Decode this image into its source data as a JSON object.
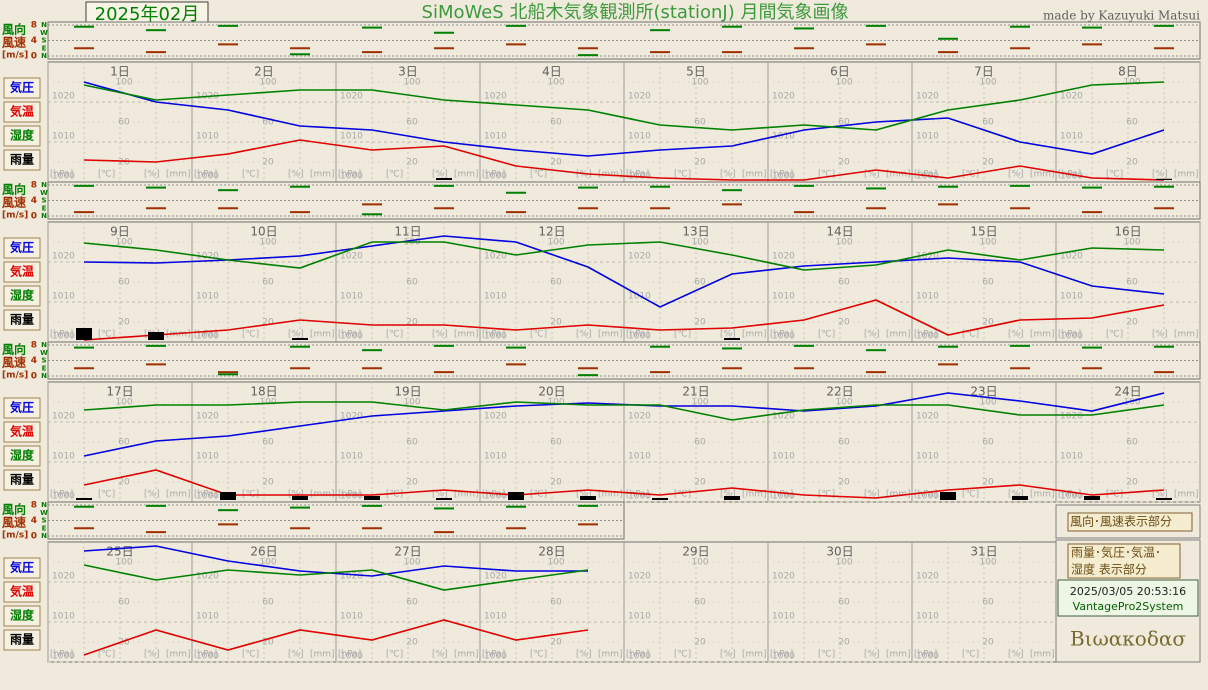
{
  "header": {
    "month": "2025年02月",
    "title": "SiMoWeS 北船木気象観測所(stationJ)  月間気象画像",
    "credit": "made by Kazuyuki Matsui"
  },
  "legend": {
    "wind_box": "風向･風速表示部分",
    "main_box_1": "雨量･気圧･気温･",
    "main_box_2": "湿度 表示部分",
    "timestamp": "2025/03/05 20:53:16",
    "system": "VantagePro2System",
    "logo": "Bιωακοδασ"
  },
  "chart_data": [
    {
      "type": "line",
      "wind_dir_label": "風向",
      "wind_speed_label": "風速",
      "wind_unit": "[m/s]",
      "units": [
        "[hPa]",
        "[℃]",
        "[%]",
        "[mm]"
      ],
      "categories": [
        "1日",
        null,
        "2日",
        null,
        "3日",
        null,
        "4日",
        null,
        "5日",
        null,
        "6日",
        null,
        "7日",
        null,
        "8日",
        null
      ],
      "ylim": [
        1000,
        1030
      ],
      "yticks": [
        1000,
        1010,
        1020
      ],
      "y2lim": [
        0,
        120
      ],
      "y2ticks": [
        20,
        60,
        100
      ],
      "y3lim": [
        -5,
        25
      ],
      "rainlim": [
        0,
        10
      ],
      "windlim": [
        0,
        8
      ],
      "windticks": [
        0,
        4,
        8
      ],
      "dirlim": [
        0,
        360
      ],
      "dirticks": [
        {
          "value": 0,
          "label": "N"
        },
        {
          "value": 90,
          "label": "E"
        },
        {
          "value": 180,
          "label": "S"
        },
        {
          "value": 270,
          "label": "W"
        },
        {
          "value": 360,
          "label": "N"
        }
      ],
      "series": [
        {
          "name": "気圧",
          "color": "#0000e0",
          "axis": "y",
          "values": [
            1025,
            1020,
            1018,
            1014,
            1013,
            1010,
            1008,
            1006.5,
            1008,
            1009,
            1013,
            1015,
            1016,
            1010,
            1007,
            1013
          ]
        },
        {
          "name": "気温",
          "color": "#e00000",
          "axis": "y3",
          "values": [
            0.5,
            0,
            2,
            5.5,
            3,
            4,
            -1,
            -3,
            -4,
            -4.5,
            -4.5,
            -2,
            -4,
            -1,
            -4,
            -4.5
          ]
        },
        {
          "name": "湿度",
          "color": "#008000",
          "axis": "y2",
          "values": [
            97,
            82,
            87,
            92,
            92,
            82,
            77,
            72,
            57,
            52,
            57,
            52,
            72,
            82,
            97,
            100
          ]
        },
        {
          "name": "雨量",
          "color": "#000000",
          "axis": "rain",
          "values": [
            0,
            0,
            0,
            0,
            0,
            0.5,
            0,
            0,
            0,
            0,
            0,
            0,
            0,
            0,
            0,
            0.3
          ]
        },
        {
          "name": "風速",
          "color": "#a03000",
          "axis": "wind",
          "values": [
            2,
            1,
            3,
            2,
            1,
            2,
            3,
            2,
            1,
            1,
            2,
            3,
            1,
            2,
            3,
            2
          ]
        },
        {
          "name": "風向",
          "color": "#008000",
          "axis": "dir",
          "values": [
            340,
            300,
            350,
            20,
            330,
            270,
            350,
            10,
            300,
            340,
            320,
            350,
            200,
            340,
            330,
            350
          ]
        }
      ]
    },
    {
      "type": "line",
      "wind_dir_label": "風向",
      "wind_speed_label": "風速",
      "wind_unit": "[m/s]",
      "units": [
        "[hPa]",
        "[℃]",
        "[%]",
        "[mm]"
      ],
      "categories": [
        "9日",
        null,
        "10日",
        null,
        "11日",
        null,
        "12日",
        null,
        "13日",
        null,
        "14日",
        null,
        "15日",
        null,
        "16日",
        null
      ],
      "ylim": [
        1000,
        1030
      ],
      "yticks": [
        1000,
        1010,
        1020
      ],
      "y2lim": [
        0,
        120
      ],
      "y2ticks": [
        20,
        60,
        100
      ],
      "y3lim": [
        -5,
        25
      ],
      "rainlim": [
        0,
        10
      ],
      "windlim": [
        0,
        8
      ],
      "windticks": [
        0,
        4,
        8
      ],
      "dirlim": [
        0,
        360
      ],
      "dirticks": [
        {
          "value": 0,
          "label": "N"
        },
        {
          "value": 90,
          "label": "E"
        },
        {
          "value": 180,
          "label": "S"
        },
        {
          "value": 270,
          "label": "W"
        },
        {
          "value": 360,
          "label": "N"
        }
      ],
      "series": [
        {
          "name": "気圧",
          "color": "#0000e0",
          "axis": "y",
          "values": [
            1020,
            1019.75,
            1020.5,
            1021.5,
            1024,
            1026.5,
            1025,
            1018.75,
            1008.75,
            1017,
            1019,
            1020,
            1021,
            1020,
            1014,
            1012
          ]
        },
        {
          "name": "気温",
          "color": "#e00000",
          "axis": "y3",
          "values": [
            -4.5,
            -3.25,
            -2,
            0.5,
            -0.75,
            -0.75,
            -2,
            -0.75,
            -2,
            -1.5,
            0.5,
            5.5,
            -3.25,
            0.5,
            1,
            4.25
          ]
        },
        {
          "name": "湿度",
          "color": "#008000",
          "axis": "y2",
          "values": [
            99,
            92,
            82,
            74,
            100,
            100,
            87,
            97,
            100,
            87,
            72,
            77,
            92,
            82,
            94,
            92
          ]
        },
        {
          "name": "雨量",
          "color": "#000000",
          "axis": "rain",
          "values": [
            3,
            2,
            0,
            0.5,
            0,
            0,
            0,
            0,
            0,
            0.5,
            0,
            0,
            0,
            0,
            0,
            0
          ]
        },
        {
          "name": "風速",
          "color": "#a03000",
          "axis": "wind",
          "values": [
            1,
            2,
            2,
            1,
            3,
            2,
            1,
            2,
            2,
            3,
            1,
            2,
            3,
            2,
            1,
            2
          ]
        },
        {
          "name": "風向",
          "color": "#008000",
          "axis": "dir",
          "values": [
            350,
            330,
            300,
            340,
            20,
            350,
            270,
            330,
            340,
            300,
            350,
            320,
            340,
            350,
            330,
            340
          ]
        }
      ]
    },
    {
      "type": "line",
      "wind_dir_label": "風向",
      "wind_speed_label": "風速",
      "wind_unit": "[m/s]",
      "units": [
        "[hPa]",
        "[℃]",
        "[%]",
        "[mm]"
      ],
      "categories": [
        "17日",
        null,
        "18日",
        null,
        "19日",
        null,
        "20日",
        null,
        "21日",
        null,
        "22日",
        null,
        "23日",
        null,
        "24日",
        null
      ],
      "ylim": [
        1000,
        1030
      ],
      "yticks": [
        1000,
        1010,
        1020
      ],
      "y2lim": [
        0,
        120
      ],
      "y2ticks": [
        20,
        60,
        100
      ],
      "y3lim": [
        -5,
        25
      ],
      "rainlim": [
        0,
        10
      ],
      "windlim": [
        0,
        8
      ],
      "windticks": [
        0,
        4,
        8
      ],
      "dirlim": [
        0,
        360
      ],
      "dirticks": [
        {
          "value": 0,
          "label": "N"
        },
        {
          "value": 90,
          "label": "E"
        },
        {
          "value": 180,
          "label": "S"
        },
        {
          "value": 270,
          "label": "W"
        },
        {
          "value": 360,
          "label": "N"
        }
      ],
      "series": [
        {
          "name": "気圧",
          "color": "#0000e0",
          "axis": "y",
          "values": [
            1011.5,
            1015.25,
            1016.5,
            1019,
            1021.5,
            1022.75,
            1024,
            1024.75,
            1024,
            1024,
            1022.75,
            1024,
            1027.25,
            1025.25,
            1022.75,
            1027.25
          ]
        },
        {
          "name": "気温",
          "color": "#e00000",
          "axis": "y3",
          "values": [
            -0.75,
            3,
            -3.25,
            -3.25,
            -3.25,
            -2,
            -3.25,
            -2,
            -3.25,
            -1.5,
            -3.25,
            -4,
            -2,
            -0.75,
            -3.25,
            -2
          ]
        },
        {
          "name": "湿度",
          "color": "#008000",
          "axis": "y2",
          "values": [
            92,
            97,
            97,
            100,
            100,
            92,
            100,
            97,
            97,
            82,
            92,
            97,
            97,
            87,
            87,
            97
          ]
        },
        {
          "name": "雨量",
          "color": "#000000",
          "axis": "rain",
          "values": [
            0.5,
            0,
            2,
            1,
            1,
            0.5,
            2,
            1,
            0.5,
            1,
            0,
            0,
            2,
            1,
            1,
            0.5
          ]
        },
        {
          "name": "風速",
          "color": "#a03000",
          "axis": "wind",
          "values": [
            2,
            3,
            1,
            2,
            2,
            1,
            3,
            2,
            1,
            2,
            2,
            1,
            3,
            2,
            2,
            1
          ]
        },
        {
          "name": "風向",
          "color": "#008000",
          "axis": "dir",
          "values": [
            330,
            350,
            20,
            340,
            300,
            350,
            330,
            10,
            340,
            320,
            350,
            300,
            340,
            350,
            330,
            340
          ]
        }
      ]
    },
    {
      "type": "line",
      "wind_dir_label": "風向",
      "wind_speed_label": "風速",
      "wind_unit": "[m/s]",
      "units": [
        "[hPa]",
        "[℃]",
        "[%]",
        "[mm]"
      ],
      "categories": [
        "25日",
        null,
        "26日",
        null,
        "27日",
        null,
        "28日",
        null,
        "29日",
        null,
        "30日",
        null,
        "31日",
        null
      ],
      "ylim": [
        1000,
        1030
      ],
      "yticks": [
        1000,
        1010,
        1020
      ],
      "y2lim": [
        0,
        120
      ],
      "y2ticks": [
        20,
        60,
        100
      ],
      "y3lim": [
        -5,
        25
      ],
      "rainlim": [
        0,
        10
      ],
      "windlim": [
        0,
        8
      ],
      "windticks": [
        0,
        4,
        8
      ],
      "dirlim": [
        0,
        360
      ],
      "dirticks": [
        {
          "value": 0,
          "label": "N"
        },
        {
          "value": 90,
          "label": "E"
        },
        {
          "value": 180,
          "label": "S"
        },
        {
          "value": 270,
          "label": "W"
        },
        {
          "value": 360,
          "label": "N"
        }
      ],
      "series": [
        {
          "name": "気圧",
          "color": "#0000e0",
          "axis": "y",
          "values": [
            1027.75,
            1029,
            1025.25,
            1022.75,
            1021.5,
            1024,
            1022.75,
            1022.75,
            null,
            null,
            null,
            null,
            null,
            null
          ]
        },
        {
          "name": "気温",
          "color": "#e00000",
          "axis": "y3",
          "values": [
            -3.25,
            3,
            -2,
            3,
            0.5,
            5.5,
            0.5,
            3,
            null,
            null,
            null,
            null,
            null,
            null
          ]
        },
        {
          "name": "湿度",
          "color": "#008000",
          "axis": "y2",
          "values": [
            97,
            82,
            92,
            87,
            92,
            72,
            82,
            92,
            null,
            null,
            null,
            null,
            null,
            null
          ]
        },
        {
          "name": "雨量",
          "color": "#000000",
          "axis": "rain",
          "values": [
            0,
            0,
            0,
            0,
            0,
            0,
            0,
            0,
            null,
            null,
            null,
            null,
            null,
            null
          ]
        },
        {
          "name": "風速",
          "color": "#a03000",
          "axis": "wind",
          "values": [
            2,
            1,
            3,
            2,
            2,
            1,
            2,
            3,
            null,
            null,
            null,
            null,
            null,
            null
          ]
        },
        {
          "name": "風向",
          "color": "#008000",
          "axis": "dir",
          "values": [
            340,
            350,
            300,
            330,
            350,
            320,
            340,
            350,
            null,
            null,
            null,
            null,
            null,
            null
          ]
        }
      ]
    }
  ]
}
